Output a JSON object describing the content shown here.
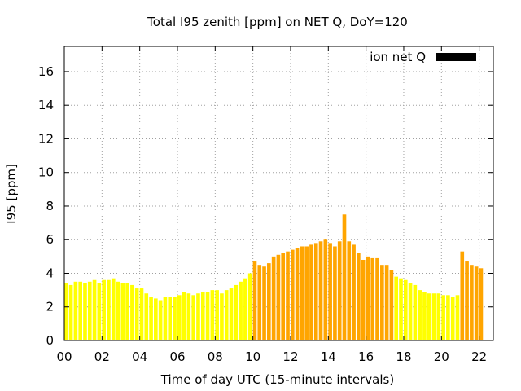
{
  "chart_data": {
    "type": "bar",
    "title": "Total I95 zenith [ppm] on NET Q, DoY=120",
    "xlabel": "Time of day UTC (15-minute intervals)",
    "ylabel": "I95 [ppm]",
    "legend": {
      "label": "ion net Q",
      "position": "top-right",
      "swatch_color": "#000000"
    },
    "grid": true,
    "ylim": [
      0,
      17.5
    ],
    "xlim": [
      0,
      22.75
    ],
    "yticks": [
      0,
      2,
      4,
      6,
      8,
      10,
      12,
      14,
      16
    ],
    "xticks": [
      "00",
      "02",
      "04",
      "06",
      "08",
      "10",
      "12",
      "14",
      "16",
      "18",
      "20",
      "22"
    ],
    "interval_hours": 0.25,
    "colors": {
      "low": "#ffff00",
      "medium": "#ffa500"
    },
    "values": [
      3.4,
      3.3,
      3.5,
      3.5,
      3.4,
      3.5,
      3.6,
      3.4,
      3.6,
      3.6,
      3.7,
      3.5,
      3.4,
      3.4,
      3.3,
      3.1,
      3.1,
      2.8,
      2.6,
      2.5,
      2.4,
      2.6,
      2.6,
      2.6,
      2.7,
      2.9,
      2.8,
      2.7,
      2.8,
      2.9,
      2.9,
      3.0,
      3.0,
      2.8,
      3.0,
      3.1,
      3.3,
      3.5,
      3.7,
      4.0,
      4.7,
      4.5,
      4.4,
      4.6,
      5.0,
      5.1,
      5.2,
      5.3,
      5.4,
      5.5,
      5.6,
      5.6,
      5.7,
      5.8,
      5.9,
      6.0,
      5.8,
      5.6,
      5.9,
      7.5,
      5.9,
      5.7,
      5.2,
      4.8,
      5.0,
      4.9,
      4.9,
      4.5,
      4.5,
      4.2,
      3.8,
      3.7,
      3.6,
      3.4,
      3.3,
      3.0,
      2.9,
      2.8,
      2.8,
      2.8,
      2.7,
      2.7,
      2.6,
      2.7,
      5.3,
      4.7,
      4.5,
      4.4,
      4.3
    ],
    "levels": [
      "low",
      "low",
      "low",
      "low",
      "low",
      "low",
      "low",
      "low",
      "low",
      "low",
      "low",
      "low",
      "low",
      "low",
      "low",
      "low",
      "low",
      "low",
      "low",
      "low",
      "low",
      "low",
      "low",
      "low",
      "low",
      "low",
      "low",
      "low",
      "low",
      "low",
      "low",
      "low",
      "low",
      "low",
      "low",
      "low",
      "low",
      "low",
      "low",
      "low",
      "medium",
      "medium",
      "medium",
      "medium",
      "medium",
      "medium",
      "medium",
      "medium",
      "medium",
      "medium",
      "medium",
      "medium",
      "medium",
      "medium",
      "medium",
      "medium",
      "medium",
      "medium",
      "medium",
      "medium",
      "medium",
      "medium",
      "medium",
      "medium",
      "medium",
      "medium",
      "medium",
      "medium",
      "medium",
      "medium",
      "low",
      "low",
      "low",
      "low",
      "low",
      "low",
      "low",
      "low",
      "low",
      "low",
      "low",
      "low",
      "low",
      "low",
      "medium",
      "medium",
      "medium",
      "medium",
      "medium"
    ]
  }
}
